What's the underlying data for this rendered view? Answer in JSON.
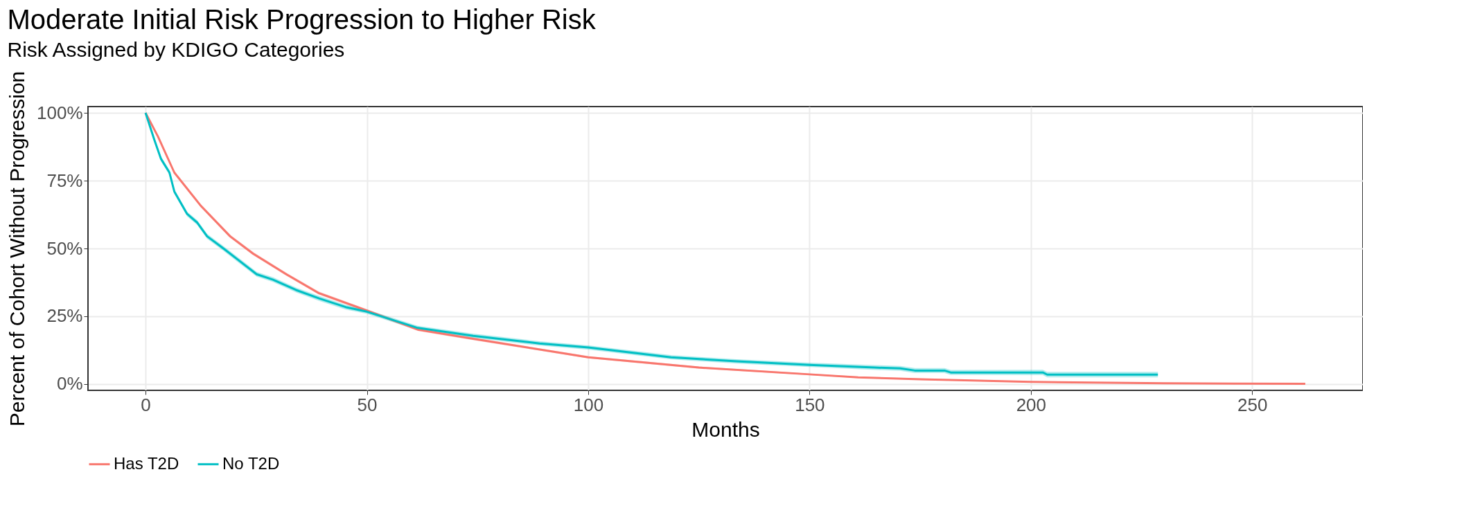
{
  "chart_data": {
    "type": "line",
    "title": "Moderate Initial Risk Progression to Higher Risk",
    "subtitle": "Risk Assigned by KDIGO Categories",
    "xlabel": "Months",
    "ylabel": "Percent of Cohort Without Progression",
    "xlim": [
      -13,
      275
    ],
    "xticks": [
      0,
      50,
      100,
      150,
      200,
      250
    ],
    "ylim": [
      -2.3,
      102.3
    ],
    "yticks": [
      {
        "value": 0,
        "label": "0%"
      },
      {
        "value": 25,
        "label": "25%"
      },
      {
        "value": 50,
        "label": "50%"
      },
      {
        "value": 75,
        "label": "75%"
      },
      {
        "value": 100,
        "label": "100%"
      }
    ],
    "grid": true,
    "legend": "bottom",
    "line_style": "solid",
    "series": [
      {
        "name": "Has T2D",
        "color": "#f8766d",
        "x": [
          0,
          2.8,
          6.5,
          12.4,
          19.1,
          24.3,
          31.8,
          39.2,
          50,
          61.5,
          74,
          100,
          125,
          150,
          161,
          175,
          200,
          230,
          262
        ],
        "values": [
          100,
          91.3,
          78,
          65.9,
          54.5,
          48.1,
          40.5,
          33.5,
          27.1,
          20.1,
          16.7,
          9.9,
          6.1,
          3.6,
          2.5,
          1.8,
          0.8,
          0.3,
          0.1
        ],
        "lower": [
          100,
          90.8,
          77.4,
          65.3,
          53.9,
          47.5,
          39.9,
          32.9,
          26.6,
          19.6,
          16.2,
          9.5,
          5.7,
          3.3,
          2.2,
          1.5,
          0.6,
          0.1,
          0
        ],
        "upper": [
          100,
          91.8,
          78.6,
          66.5,
          55.1,
          48.7,
          41.1,
          34.1,
          27.6,
          20.6,
          17.2,
          10.3,
          6.5,
          3.9,
          2.8,
          2.1,
          1.0,
          0.5,
          0.3
        ]
      },
      {
        "name": "No T2D",
        "color": "#00bfc4",
        "x": [
          0,
          2,
          3.5,
          5.4,
          6.5,
          9.4,
          11.7,
          13.9,
          17.6,
          20.6,
          25.1,
          28.8,
          34,
          39.2,
          45.2,
          50,
          61.5,
          74,
          89,
          100,
          118.7,
          133.5,
          150,
          164.7,
          170.5,
          173.8,
          180.5,
          181.9,
          202.7,
          203.7,
          228.7
        ],
        "values": [
          100,
          90,
          83,
          78,
          71,
          62.7,
          59.5,
          54.5,
          50,
          46.2,
          40.5,
          38.5,
          34.7,
          31.6,
          28.4,
          26.7,
          20.7,
          17.8,
          15,
          13.5,
          9.9,
          8.4,
          7.1,
          6.1,
          5.8,
          5.0,
          5.0,
          4.3,
          4.3,
          3.5,
          3.5
        ],
        "lower": [
          100,
          89.2,
          82.1,
          77.1,
          70.1,
          61.8,
          58.6,
          53.6,
          49.1,
          45.3,
          39.6,
          37.6,
          33.8,
          30.7,
          27.5,
          25.9,
          19.9,
          17.0,
          14.2,
          12.7,
          9.1,
          7.6,
          6.3,
          5.2,
          4.9,
          4.1,
          4.1,
          3.4,
          3.3,
          2.5,
          2.5
        ],
        "upper": [
          100,
          90.8,
          83.9,
          78.9,
          71.9,
          63.6,
          60.4,
          55.4,
          50.9,
          47.1,
          41.4,
          39.4,
          35.6,
          32.5,
          29.3,
          27.5,
          21.5,
          18.6,
          15.8,
          14.3,
          10.7,
          9.2,
          7.9,
          7.0,
          6.7,
          5.9,
          5.9,
          5.2,
          5.3,
          4.5,
          4.5
        ]
      }
    ]
  }
}
